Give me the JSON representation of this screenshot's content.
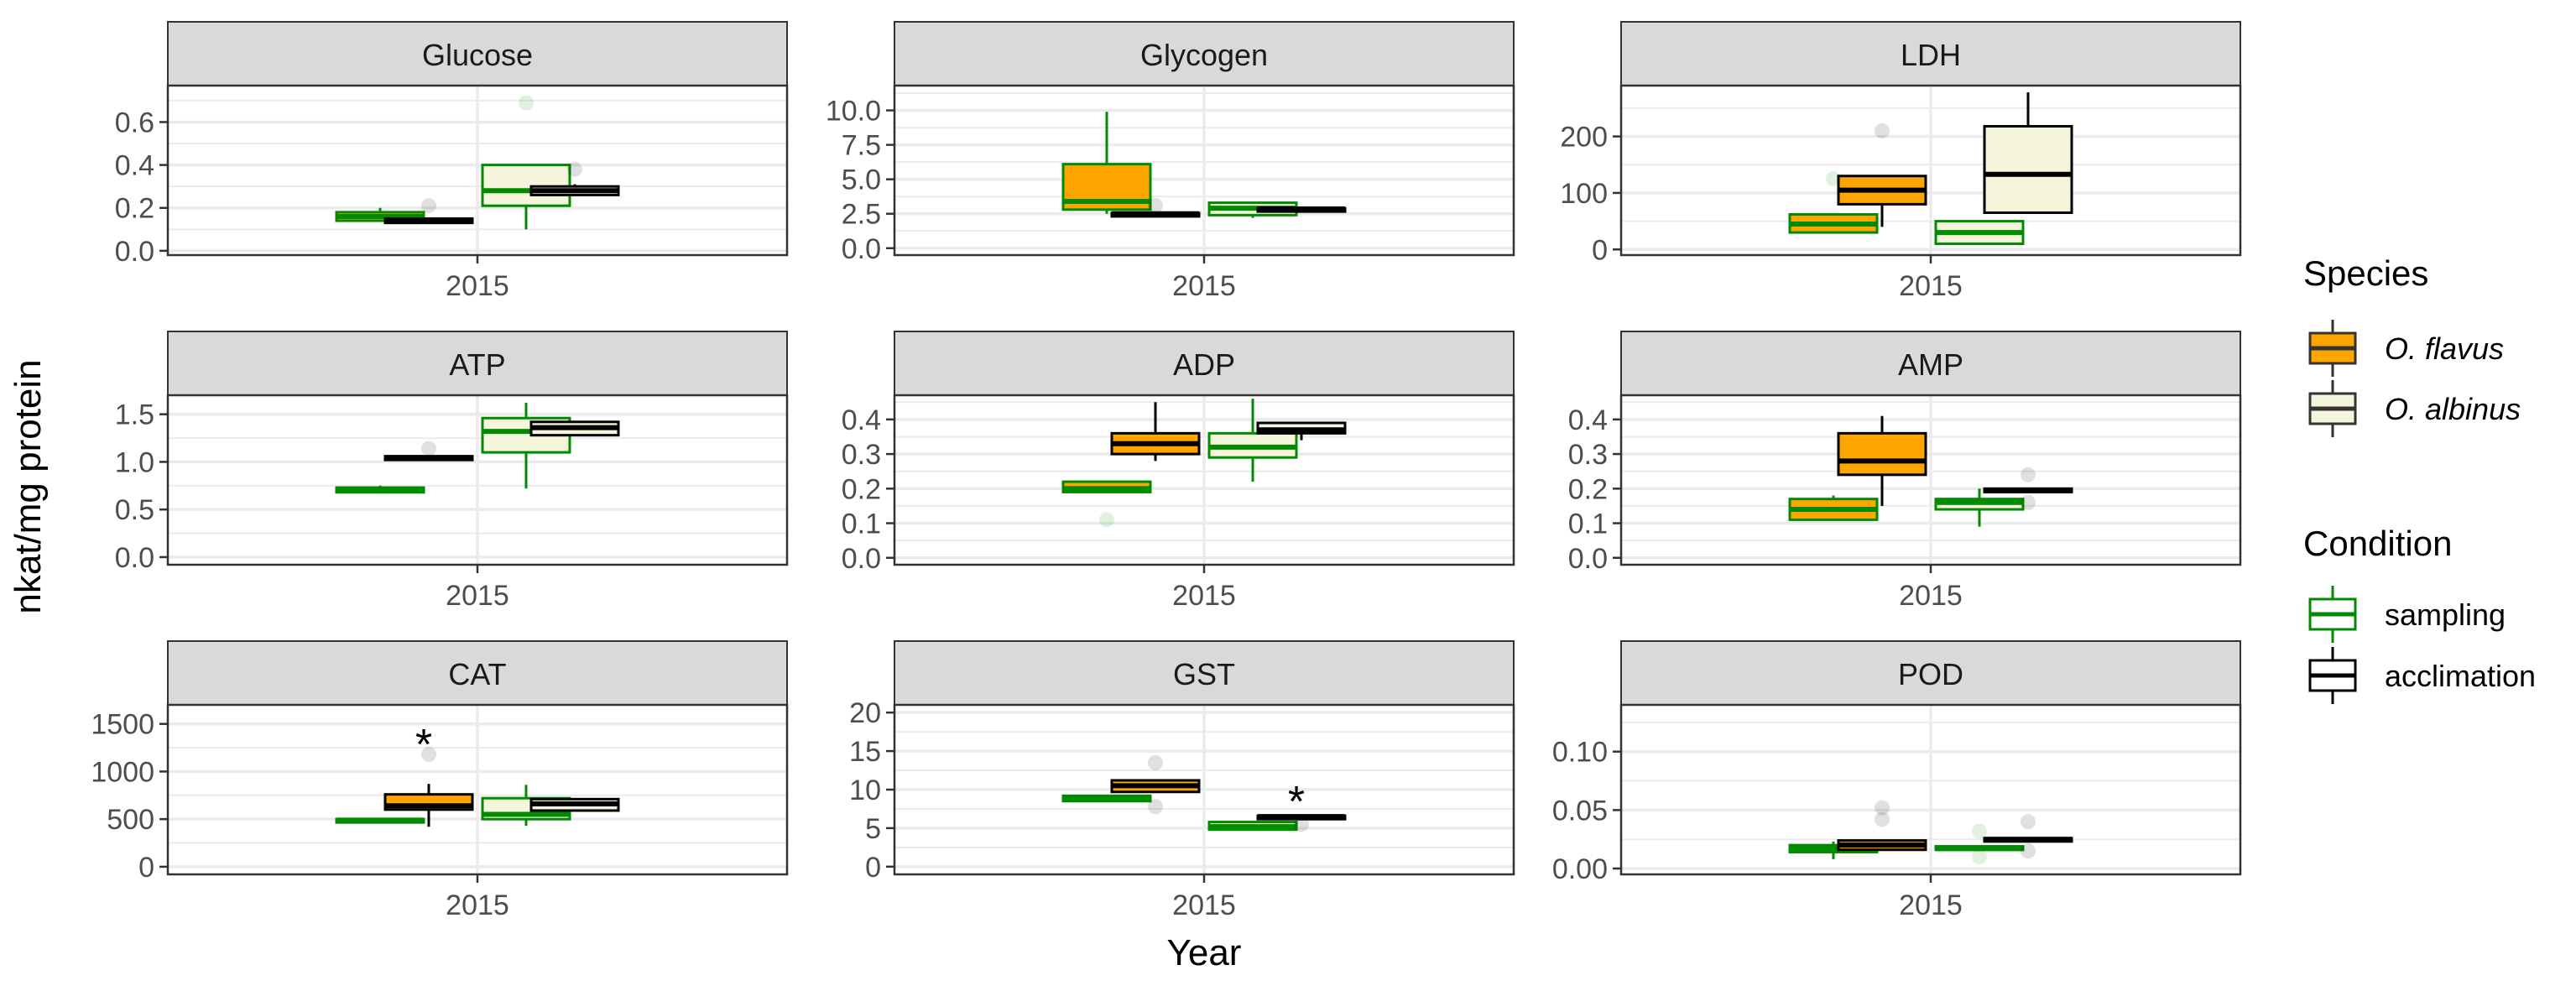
{
  "chart_data": {
    "type": "box",
    "xlabel": "Year",
    "ylabel": "nkat/mg protein",
    "legend": {
      "placement": "right",
      "species_title": "Species",
      "species": [
        {
          "name": "O. flavus",
          "fill": "#FFA500"
        },
        {
          "name": "O. albinus",
          "fill": "#F5F5DC"
        }
      ],
      "condition_title": "Condition",
      "conditions": [
        {
          "name": "sampling",
          "stroke": "#008B00"
        },
        {
          "name": "acclimation",
          "stroke": "#000000"
        }
      ]
    },
    "group_order": [
      "O. flavus / sampling",
      "O. flavus / acclimation",
      "O. albinus / sampling",
      "O. albinus / acclimation"
    ],
    "panels": [
      {
        "title": "Glucose",
        "x_tick": "2015",
        "ylim": [
          -0.02,
          0.77
        ],
        "yticks": [
          "0.0",
          "0.2",
          "0.4",
          "0.6"
        ],
        "ytick_values": [
          0,
          0.2,
          0.4,
          0.6
        ],
        "boxes": [
          {
            "min": 0.14,
            "q1": 0.14,
            "median": 0.16,
            "q3": 0.18,
            "max": 0.2,
            "outliers": []
          },
          {
            "min": 0.13,
            "q1": 0.13,
            "median": 0.14,
            "q3": 0.15,
            "max": 0.15,
            "outliers": [
              0.21
            ]
          },
          {
            "min": 0.1,
            "q1": 0.21,
            "median": 0.28,
            "q3": 0.4,
            "max": 0.4,
            "outliers": [
              0.69
            ]
          },
          {
            "min": 0.26,
            "q1": 0.26,
            "median": 0.28,
            "q3": 0.3,
            "max": 0.31,
            "outliers": [
              0.38
            ]
          }
        ],
        "annotations": []
      },
      {
        "title": "Glycogen",
        "x_tick": "2015",
        "ylim": [
          -0.5,
          11.8
        ],
        "yticks": [
          "0.0",
          "2.5",
          "5.0",
          "7.5",
          "10.0"
        ],
        "ytick_values": [
          0,
          2.5,
          5,
          7.5,
          10
        ],
        "boxes": [
          {
            "min": 2.5,
            "q1": 2.8,
            "median": 3.4,
            "q3": 6.1,
            "max": 9.9,
            "outliers": []
          },
          {
            "min": 2.4,
            "q1": 2.4,
            "median": 2.5,
            "q3": 2.55,
            "max": 2.55,
            "outliers": [
              3.1
            ]
          },
          {
            "min": 2.2,
            "q1": 2.4,
            "median": 2.9,
            "q3": 3.3,
            "max": 3.3,
            "outliers": []
          },
          {
            "min": 2.8,
            "q1": 2.8,
            "median": 2.85,
            "q3": 2.9,
            "max": 2.9,
            "outliers": []
          }
        ],
        "annotations": []
      },
      {
        "title": "LDH",
        "x_tick": "2015",
        "ylim": [
          -10,
          290
        ],
        "yticks": [
          "0",
          "100",
          "200"
        ],
        "ytick_values": [
          0,
          100,
          200
        ],
        "boxes": [
          {
            "min": 30,
            "q1": 30,
            "median": 45,
            "q3": 62,
            "max": 62,
            "outliers": [
              125
            ]
          },
          {
            "min": 40,
            "q1": 80,
            "median": 105,
            "q3": 130,
            "max": 130,
            "outliers": [
              210
            ]
          },
          {
            "min": 10,
            "q1": 10,
            "median": 30,
            "q3": 50,
            "max": 50,
            "outliers": []
          },
          {
            "min": 65,
            "q1": 65,
            "median": 133,
            "q3": 218,
            "max": 278,
            "outliers": []
          }
        ],
        "annotations": []
      },
      {
        "title": "ATP",
        "x_tick": "2015",
        "ylim": [
          -0.08,
          1.7
        ],
        "yticks": [
          "0.0",
          "0.5",
          "1.0",
          "1.5"
        ],
        "ytick_values": [
          0,
          0.5,
          1,
          1.5
        ],
        "boxes": [
          {
            "min": 0.68,
            "q1": 0.68,
            "median": 0.7,
            "q3": 0.73,
            "max": 0.75,
            "outliers": []
          },
          {
            "min": 1.02,
            "q1": 1.02,
            "median": 1.04,
            "q3": 1.06,
            "max": 1.06,
            "outliers": [
              1.14
            ]
          },
          {
            "min": 0.72,
            "q1": 1.1,
            "median": 1.32,
            "q3": 1.46,
            "max": 1.62,
            "outliers": []
          },
          {
            "min": 1.28,
            "q1": 1.28,
            "median": 1.36,
            "q3": 1.42,
            "max": 1.42,
            "outliers": []
          }
        ],
        "annotations": []
      },
      {
        "title": "ADP",
        "x_tick": "2015",
        "ylim": [
          -0.02,
          0.47
        ],
        "yticks": [
          "0.0",
          "0.1",
          "0.2",
          "0.3",
          "0.4"
        ],
        "ytick_values": [
          0,
          0.1,
          0.2,
          0.3,
          0.4
        ],
        "boxes": [
          {
            "min": 0.19,
            "q1": 0.19,
            "median": 0.2,
            "q3": 0.22,
            "max": 0.22,
            "outliers": [
              0.11
            ]
          },
          {
            "min": 0.28,
            "q1": 0.3,
            "median": 0.33,
            "q3": 0.36,
            "max": 0.45,
            "outliers": []
          },
          {
            "min": 0.22,
            "q1": 0.29,
            "median": 0.32,
            "q3": 0.36,
            "max": 0.46,
            "outliers": []
          },
          {
            "min": 0.34,
            "q1": 0.36,
            "median": 0.37,
            "q3": 0.39,
            "max": 0.39,
            "outliers": []
          }
        ],
        "annotations": []
      },
      {
        "title": "AMP",
        "x_tick": "2015",
        "ylim": [
          -0.02,
          0.47
        ],
        "yticks": [
          "0.0",
          "0.1",
          "0.2",
          "0.3",
          "0.4"
        ],
        "ytick_values": [
          0,
          0.1,
          0.2,
          0.3,
          0.4
        ],
        "boxes": [
          {
            "min": 0.11,
            "q1": 0.11,
            "median": 0.14,
            "q3": 0.17,
            "max": 0.18,
            "outliers": []
          },
          {
            "min": 0.15,
            "q1": 0.24,
            "median": 0.28,
            "q3": 0.36,
            "max": 0.41,
            "outliers": []
          },
          {
            "min": 0.09,
            "q1": 0.14,
            "median": 0.16,
            "q3": 0.17,
            "max": 0.2,
            "outliers": []
          },
          {
            "min": 0.19,
            "q1": 0.19,
            "median": 0.195,
            "q3": 0.2,
            "max": 0.2,
            "outliers": [
              0.24,
              0.16
            ]
          }
        ],
        "annotations": []
      },
      {
        "title": "CAT",
        "x_tick": "2015",
        "ylim": [
          -80,
          1700
        ],
        "yticks": [
          "0",
          "500",
          "1000",
          "1500"
        ],
        "ytick_values": [
          0,
          500,
          1000,
          1500
        ],
        "boxes": [
          {
            "min": 480,
            "q1": 480,
            "median": 490,
            "q3": 500,
            "max": 500,
            "outliers": []
          },
          {
            "min": 420,
            "q1": 600,
            "median": 640,
            "q3": 760,
            "max": 870,
            "outliers": [
              1180
            ]
          },
          {
            "min": 430,
            "q1": 500,
            "median": 550,
            "q3": 720,
            "max": 860,
            "outliers": []
          },
          {
            "min": 590,
            "q1": 590,
            "median": 660,
            "q3": 710,
            "max": 710,
            "outliers": []
          }
        ],
        "annotations": [
          {
            "group": 1,
            "text": "*",
            "y": 1320
          }
        ]
      },
      {
        "title": "GST",
        "x_tick": "2015",
        "ylim": [
          -1,
          21
        ],
        "yticks": [
          "0",
          "5",
          "10",
          "15",
          "20"
        ],
        "ytick_values": [
          0,
          5,
          10,
          15,
          20
        ],
        "boxes": [
          {
            "min": 8.5,
            "q1": 8.5,
            "median": 8.8,
            "q3": 9.2,
            "max": 9.2,
            "outliers": []
          },
          {
            "min": 9.7,
            "q1": 9.7,
            "median": 10.5,
            "q3": 11.2,
            "max": 11.2,
            "outliers": [
              13.5,
              7.8
            ]
          },
          {
            "min": 4.7,
            "q1": 4.8,
            "median": 5.2,
            "q3": 5.8,
            "max": 5.8,
            "outliers": []
          },
          {
            "min": 6.4,
            "q1": 6.4,
            "median": 6.5,
            "q3": 6.6,
            "max": 6.6,
            "outliers": [
              5.5
            ]
          }
        ],
        "annotations": [
          {
            "group": 3,
            "text": "*",
            "y": 8.9
          }
        ]
      },
      {
        "title": "POD",
        "x_tick": "2015",
        "ylim": [
          -0.005,
          0.14
        ],
        "yticks": [
          "0.00",
          "0.05",
          "0.10"
        ],
        "ytick_values": [
          0,
          0.05,
          0.1
        ],
        "boxes": [
          {
            "min": 0.008,
            "q1": 0.014,
            "median": 0.017,
            "q3": 0.02,
            "max": 0.023,
            "outliers": []
          },
          {
            "min": 0.016,
            "q1": 0.016,
            "median": 0.02,
            "q3": 0.024,
            "max": 0.024,
            "outliers": [
              0.052,
              0.042
            ]
          },
          {
            "min": 0.016,
            "q1": 0.016,
            "median": 0.017,
            "q3": 0.019,
            "max": 0.019,
            "outliers": [
              0.032,
              0.01
            ]
          },
          {
            "min": 0.024,
            "q1": 0.024,
            "median": 0.025,
            "q3": 0.026,
            "max": 0.026,
            "outliers": [
              0.04,
              0.015
            ]
          }
        ],
        "annotations": []
      }
    ]
  }
}
